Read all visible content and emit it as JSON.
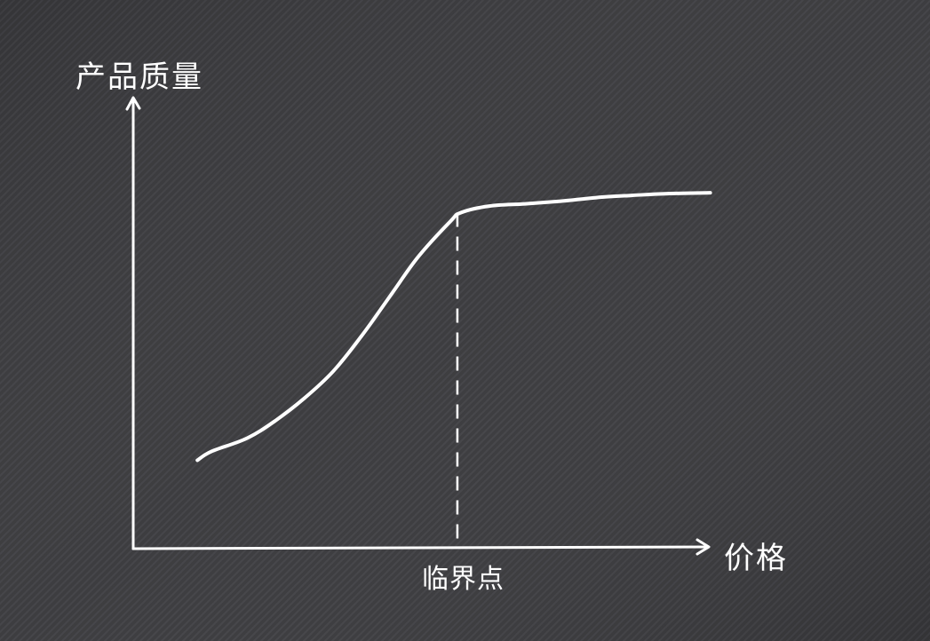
{
  "background": {
    "color": "#3a3a3d",
    "texture": "denim"
  },
  "chart_data": {
    "type": "line",
    "title": "",
    "xlabel": "价格",
    "ylabel": "产品质量",
    "x_ticks_shown": false,
    "y_ticks_shown": false,
    "grid": false,
    "legend": "none",
    "xlim": [
      0,
      100
    ],
    "ylim": [
      0,
      100
    ],
    "stroke_color": "#ffffff",
    "series": [
      {
        "name": "",
        "style": "hand-drawn",
        "points": [
          [
            9,
            20
          ],
          [
            11,
            22
          ],
          [
            16,
            25
          ],
          [
            20,
            29
          ],
          [
            24,
            34
          ],
          [
            28,
            40
          ],
          [
            32,
            48
          ],
          [
            36,
            57
          ],
          [
            40,
            66
          ],
          [
            44.5,
            74
          ],
          [
            46,
            76
          ],
          [
            50,
            77.5
          ],
          [
            55,
            78
          ],
          [
            60,
            78.6
          ],
          [
            65,
            79.4
          ],
          [
            70,
            79.9
          ],
          [
            75,
            80.3
          ],
          [
            81,
            80.5
          ]
        ]
      }
    ],
    "annotations": [
      {
        "type": "vertical-dashed-line",
        "x": 45.5,
        "y_from": 0,
        "y_to": 76,
        "label": "临界点"
      }
    ]
  }
}
